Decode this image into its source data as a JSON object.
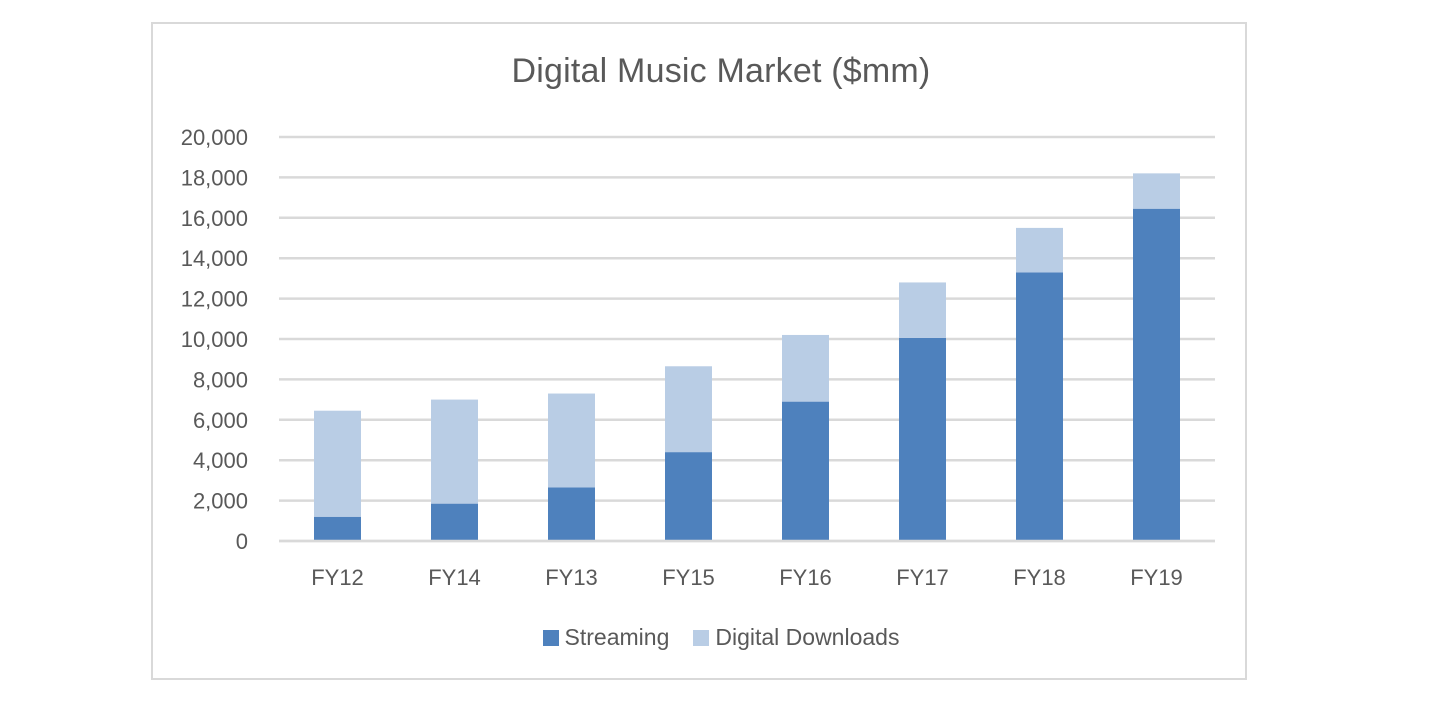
{
  "chart_data": {
    "type": "bar",
    "stacked": true,
    "title": "Digital Music Market ($mm)",
    "categories": [
      "FY12",
      "FY14",
      "FY13",
      "FY15",
      "FY16",
      "FY17",
      "FY18",
      "FY19"
    ],
    "series": [
      {
        "name": "Streaming",
        "color": "#4e81bd",
        "values": [
          1200,
          1850,
          2650,
          4400,
          6900,
          10050,
          13300,
          16450
        ]
      },
      {
        "name": "Digital Downloads",
        "color": "#b9cde5",
        "values": [
          5250,
          5150,
          4650,
          4250,
          3300,
          2750,
          2200,
          1750
        ]
      }
    ],
    "ylim": [
      0,
      20000
    ],
    "yticks": [
      "0",
      "2,000",
      "4,000",
      "6,000",
      "8,000",
      "10,000",
      "12,000",
      "14,000",
      "16,000",
      "18,000",
      "20,000"
    ],
    "grid": true,
    "legend_position": "bottom"
  }
}
